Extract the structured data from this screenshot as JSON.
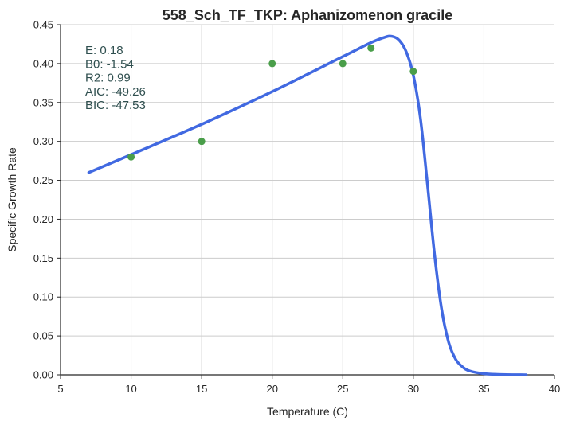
{
  "chart_data": {
    "type": "line",
    "title": "558_Sch_TF_TKP: Aphanizomenon gracile",
    "xlabel": "Temperature (C)",
    "ylabel": "Specific Growth Rate",
    "xlim": [
      5,
      40
    ],
    "ylim": [
      0,
      0.45
    ],
    "xticks": [
      "5",
      "10",
      "15",
      "20",
      "25",
      "30",
      "35",
      "40"
    ],
    "yticks": [
      "0.00",
      "0.05",
      "0.10",
      "0.15",
      "0.20",
      "0.25",
      "0.30",
      "0.35",
      "0.40",
      "0.45"
    ],
    "grid": true,
    "series": [
      {
        "kind": "scatter",
        "x": [
          10,
          15,
          20,
          25,
          27,
          30
        ],
        "y": [
          0.28,
          0.3,
          0.4,
          0.4,
          0.42,
          0.39
        ]
      },
      {
        "kind": "line",
        "x": [
          7,
          10,
          15,
          20,
          25,
          27,
          28,
          28.5,
          29,
          29.5,
          30,
          30.5,
          31,
          31.5,
          32,
          32.5,
          33,
          33.5,
          34,
          35,
          36,
          38
        ],
        "y": [
          0.26,
          0.283,
          0.322,
          0.364,
          0.409,
          0.427,
          0.434,
          0.435,
          0.43,
          0.415,
          0.385,
          0.33,
          0.245,
          0.155,
          0.085,
          0.042,
          0.02,
          0.01,
          0.005,
          0.0015,
          0.0005,
          0.0
        ]
      }
    ],
    "annotations": [
      "E:  0.18",
      "B0:  -1.54",
      "R2:  0.99",
      "AIC: -49.26",
      "BIC: -47.53"
    ]
  },
  "colors": {
    "line": "#4169e1",
    "points": "#4a9e4a",
    "grid": "#cccccc",
    "axis": "#262626",
    "annotation": "#2f4f4f"
  }
}
